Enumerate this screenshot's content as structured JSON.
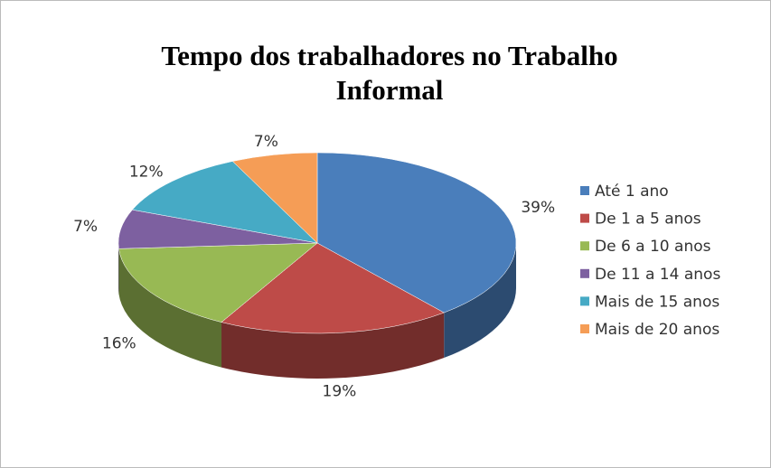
{
  "chart_data": {
    "type": "pie3d",
    "title": "Tempo dos trabalhadores no Trabalho Informal",
    "categories": [
      "Até 1 ano",
      "De 1 a 5 anos",
      "De 6 a 10 anos",
      "De 11 a 14 anos",
      "Mais de 15 anos",
      "Mais de 20 anos"
    ],
    "values": [
      39,
      19,
      16,
      7,
      12,
      7
    ],
    "value_labels": [
      "39%",
      "19%",
      "16%",
      "7%",
      "12%",
      "7%"
    ],
    "colors": [
      "#4a7ebb",
      "#be4b48",
      "#98b954",
      "#7d60a0",
      "#46aac5",
      "#f59d56"
    ],
    "legend": "right"
  }
}
